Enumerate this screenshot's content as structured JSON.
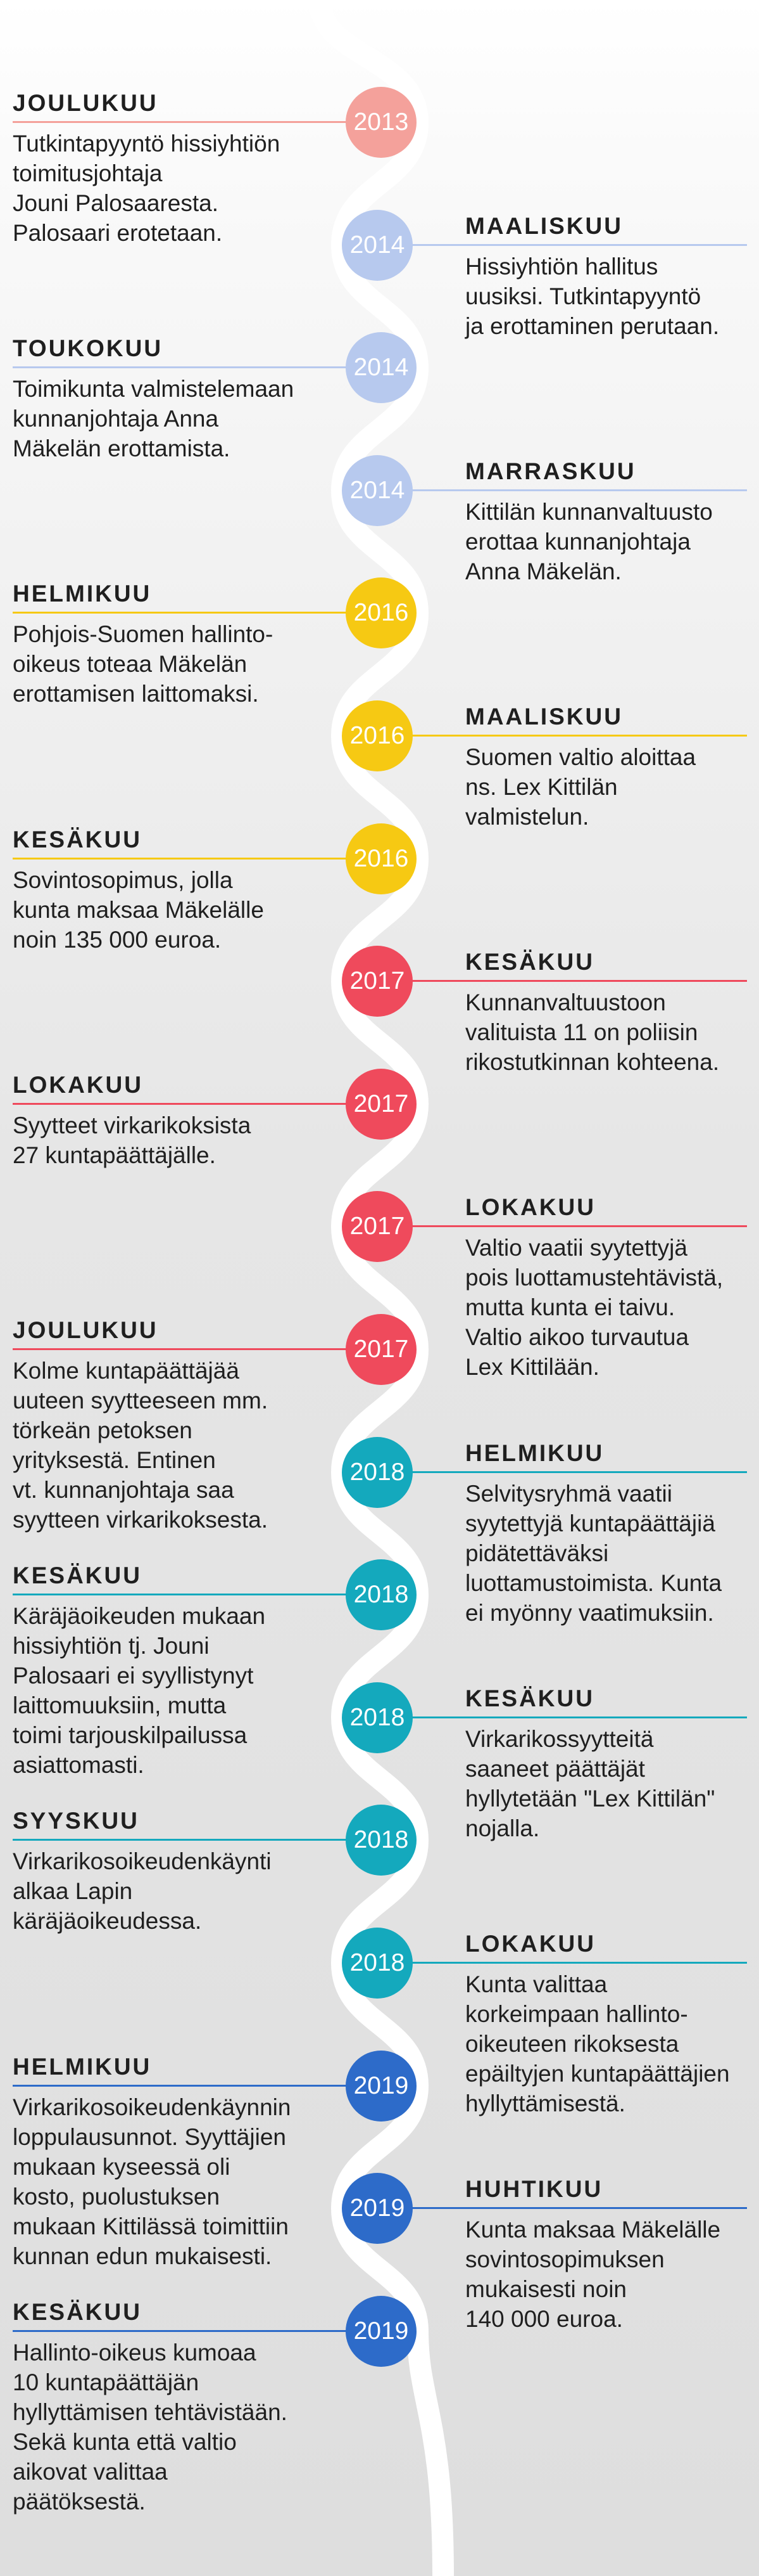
{
  "events": [
    {
      "month": "JOULUKUU",
      "year": "2013",
      "side": "left",
      "color": "#f4a19b",
      "text": "Tutkintapyyntö hissiyhtiön\ntoimitusjohtaja\nJouni Palosaaresta.\nPalosaari erotetaan."
    },
    {
      "month": "MAALISKUU",
      "year": "2014",
      "side": "right",
      "color": "#b7c9ee",
      "text": "Hissiyhtiön hallitus\nuusiksi. Tutkintapyyntö\nja erottaminen perutaan."
    },
    {
      "month": "TOUKOKUU",
      "year": "2014",
      "side": "left",
      "color": "#b7c9ee",
      "text": "Toimikunta valmistelemaan\nkunnanjohtaja Anna\nMäkelän erottamista."
    },
    {
      "month": "MARRASKUU",
      "year": "2014",
      "side": "right",
      "color": "#b7c9ee",
      "text": "Kittilän kunnanvaltuusto\nerottaa kunnanjohtaja\nAnna Mäkelän."
    },
    {
      "month": "HELMIKUU",
      "year": "2016",
      "side": "left",
      "color": "#f6c913",
      "text": "Pohjois-Suomen hallinto-\noikeus toteaa Mäkelän\nerottamisen laittomaksi."
    },
    {
      "month": "MAALISKUU",
      "year": "2016",
      "side": "right",
      "color": "#f6c913",
      "text": "Suomen valtio aloittaa\nns. Lex Kittilän\nvalmistelun."
    },
    {
      "month": "KESÄKUU",
      "year": "2016",
      "side": "left",
      "color": "#f6c913",
      "text": "Sovintosopimus, jolla\nkunta maksaa Mäkelälle\nnoin 135 000 euroa."
    },
    {
      "month": "KESÄKUU",
      "year": "2017",
      "side": "right",
      "color": "#ef4a5c",
      "text": "Kunnanvaltuustoon\nvalituista 11 on poliisin\nrikostutkinnan kohteena."
    },
    {
      "month": "LOKAKUU",
      "year": "2017",
      "side": "left",
      "color": "#ef4a5c",
      "text": "Syytteet virkarikoksista\n27 kuntapäättäjälle."
    },
    {
      "month": "LOKAKUU",
      "year": "2017",
      "side": "right",
      "color": "#ef4a5c",
      "text": "Valtio vaatii syytettyjä\npois luottamustehtävistä,\nmutta kunta ei taivu.\nValtio aikoo turvautua\nLex Kittilään."
    },
    {
      "month": "JOULUKUU",
      "year": "2017",
      "side": "left",
      "color": "#ef4a5c",
      "text": "Kolme kuntapäättäjää\nuuteen syytteeseen mm.\ntörkeän petoksen\nyrityksestä. Entinen\nvt. kunnanjohtaja saa\nsyytteen virkarikoksesta."
    },
    {
      "month": "HELMIKUU",
      "year": "2018",
      "side": "right",
      "color": "#14a9bd",
      "text": "Selvitysryhmä vaatii\nsyytettyjä kuntapäättäjiä\npidätettäväksi\nluottamustoimista. Kunta\nei myönny vaatimuksiin."
    },
    {
      "month": "KESÄKUU",
      "year": "2018",
      "side": "left",
      "color": "#14a9bd",
      "text": "Käräjäoikeuden mukaan\nhissiyhtiön tj. Jouni\nPalosaari ei syyllistynyt\nlaittomuuksiin, mutta\ntoimi tarjouskilpailussa\nasiattomasti."
    },
    {
      "month": "KESÄKUU",
      "year": "2018",
      "side": "right",
      "color": "#14a9bd",
      "text": "Virkarikossyytteitä\nsaaneet päättäjät\nhyllytetään \"Lex Kittilän\"\nnojalla."
    },
    {
      "month": "SYYSKUU",
      "year": "2018",
      "side": "left",
      "color": "#14a9bd",
      "text": "Virkarikosoikeudenkäynti\nalkaa Lapin\nkäräjäoikeudessa."
    },
    {
      "month": "LOKAKUU",
      "year": "2018",
      "side": "right",
      "color": "#14a9bd",
      "text": "Kunta valittaa\nkorkeimpaan hallinto-\noikeuteen rikoksesta\nepäiltyjen kuntapäättäjien\nhyllyttämisestä."
    },
    {
      "month": "HELMIKUU",
      "year": "2019",
      "side": "left",
      "color": "#2d6bc9",
      "text": "Virkarikosoikeudenkäynnin\nloppulausunnot. Syyttäjien\nmukaan kyseessä oli\nkosto, puolustuksen\nmukaan Kittilässä toimittiin\nkunnan edun mukaisesti."
    },
    {
      "month": "HUHTIKUU",
      "year": "2019",
      "side": "right",
      "color": "#2d6bc9",
      "text": "Kunta maksaa Mäkelälle\nsovintosopimuksen\nmukaisesti noin\n140 000 euroa."
    },
    {
      "month": "KESÄKUU",
      "year": "2019",
      "side": "left",
      "color": "#2d6bc9",
      "text": "Hallinto-oikeus kumoaa\n10 kuntapäättäjän\nhyllyttämisen tehtävistään.\nSekä kunta että valtio\naikovat valittaa\npäätöksestä."
    }
  ]
}
